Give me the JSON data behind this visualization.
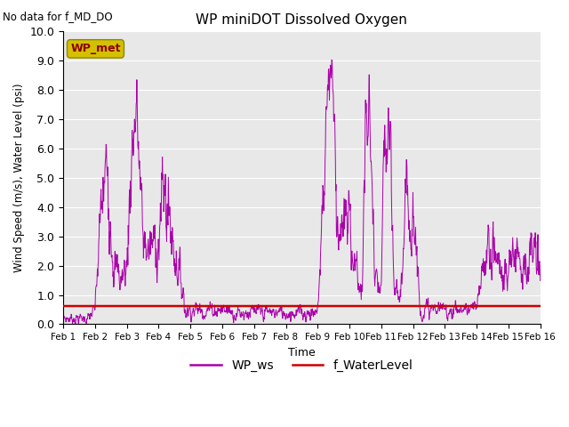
{
  "title": "WP miniDOT Dissolved Oxygen",
  "top_left_text": "No data for f_MD_DO",
  "ylabel": "Wind Speed (m/s), Water Level (psi)",
  "xlabel": "Time",
  "ylim": [
    0.0,
    10.0
  ],
  "yticks": [
    0.0,
    1.0,
    2.0,
    3.0,
    4.0,
    5.0,
    6.0,
    7.0,
    8.0,
    9.0,
    10.0
  ],
  "xtick_labels": [
    "Feb 1",
    "Feb 2",
    "Feb 3",
    "Feb 4",
    "Feb 5",
    "Feb 6",
    "Feb 7",
    "Feb 8",
    "Feb 9",
    "Feb 10",
    "Feb 11",
    "Feb 12",
    "Feb 13",
    "Feb 14",
    "Feb 15",
    "Feb 16"
  ],
  "annotation_box_label": "WP_met",
  "annotation_box_facecolor": "#d4c000",
  "annotation_box_edgecolor": "#888800",
  "annotation_text_color": "#8b0000",
  "ws_color": "#aa00aa",
  "wl_color": "#cc0000",
  "wl_value": 0.62,
  "legend_labels": [
    "WP_ws",
    "f_WaterLevel"
  ],
  "background_color": "#e8e8e8",
  "grid_color": "#ffffff",
  "num_days": 15,
  "points_per_day": 96,
  "seed": 7
}
